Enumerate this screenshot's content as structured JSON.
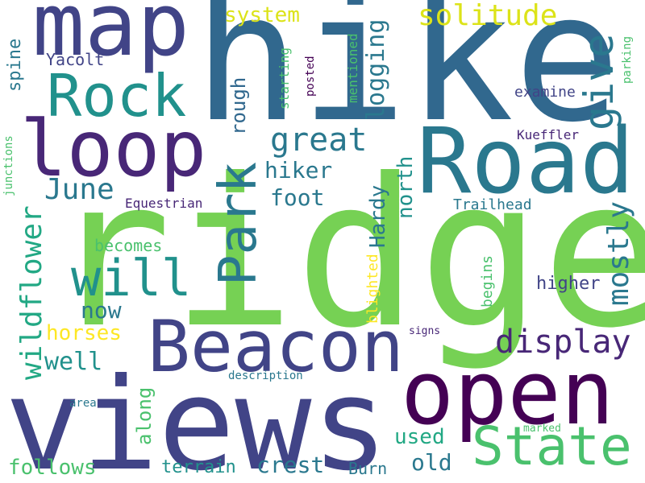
{
  "palette": {
    "green": "#76d154",
    "navy": "#414487",
    "blue": "#2a788e",
    "steel": "#31688e",
    "purple": "#482777",
    "dark_purple": "#440154",
    "teal": "#21918c",
    "sea": "#22a884",
    "mint": "#4ac16d",
    "yellow": "#dce319",
    "light_yellow": "#fde725"
  },
  "words": [
    {
      "text": "ridge",
      "color": "green"
    },
    {
      "text": "hike",
      "color": "steel"
    },
    {
      "text": "views",
      "color": "navy"
    },
    {
      "text": "Road",
      "color": "blue"
    },
    {
      "text": "open",
      "color": "dark_purple"
    },
    {
      "text": "map",
      "color": "navy"
    },
    {
      "text": "Beacon",
      "color": "navy"
    },
    {
      "text": "loop",
      "color": "purple"
    },
    {
      "text": "Rock",
      "color": "teal"
    },
    {
      "text": "State",
      "color": "mint"
    },
    {
      "text": "Park",
      "color": "blue"
    },
    {
      "text": "will",
      "color": "teal"
    },
    {
      "text": "give",
      "color": "blue"
    },
    {
      "text": "display",
      "color": "purple"
    },
    {
      "text": "solitude",
      "color": "yellow"
    },
    {
      "text": "great",
      "color": "blue"
    },
    {
      "text": "wildflower",
      "color": "sea"
    },
    {
      "text": "mostly",
      "color": "blue"
    },
    {
      "text": "June",
      "color": "blue"
    },
    {
      "text": "crest",
      "color": "blue"
    },
    {
      "text": "logging",
      "color": "blue"
    },
    {
      "text": "foot",
      "color": "blue"
    },
    {
      "text": "hiker",
      "color": "blue"
    },
    {
      "text": "Hardy",
      "color": "blue"
    },
    {
      "text": "north",
      "color": "teal"
    },
    {
      "text": "well",
      "color": "teal"
    },
    {
      "text": "now",
      "color": "blue"
    },
    {
      "text": "rough",
      "color": "steel"
    },
    {
      "text": "system",
      "color": "yellow"
    },
    {
      "text": "horses",
      "color": "light_yellow"
    },
    {
      "text": "follows",
      "color": "mint"
    },
    {
      "text": "old",
      "color": "blue"
    },
    {
      "text": "used",
      "color": "sea"
    },
    {
      "text": "along",
      "color": "mint"
    },
    {
      "text": "terrain",
      "color": "teal"
    },
    {
      "text": "Burn",
      "color": "blue"
    },
    {
      "text": "higher",
      "color": "navy"
    },
    {
      "text": "spine",
      "color": "blue"
    },
    {
      "text": "becomes",
      "color": "mint"
    },
    {
      "text": "Yacolt",
      "color": "navy"
    },
    {
      "text": "Trailhead",
      "color": "blue"
    },
    {
      "text": "Equestrian",
      "color": "purple"
    },
    {
      "text": "blighted",
      "color": "light_yellow"
    },
    {
      "text": "begins",
      "color": "mint"
    },
    {
      "text": "examine",
      "color": "navy"
    },
    {
      "text": "Kueffler",
      "color": "purple"
    },
    {
      "text": "starting",
      "color": "mint"
    },
    {
      "text": "mentioned",
      "color": "mint"
    },
    {
      "text": "junctions",
      "color": "mint"
    },
    {
      "text": "parking",
      "color": "mint"
    },
    {
      "text": "posted",
      "color": "dark_purple"
    },
    {
      "text": "description",
      "color": "blue"
    },
    {
      "text": "area",
      "color": "blue"
    },
    {
      "text": "signs",
      "color": "purple"
    },
    {
      "text": "marked",
      "color": "mint"
    }
  ]
}
